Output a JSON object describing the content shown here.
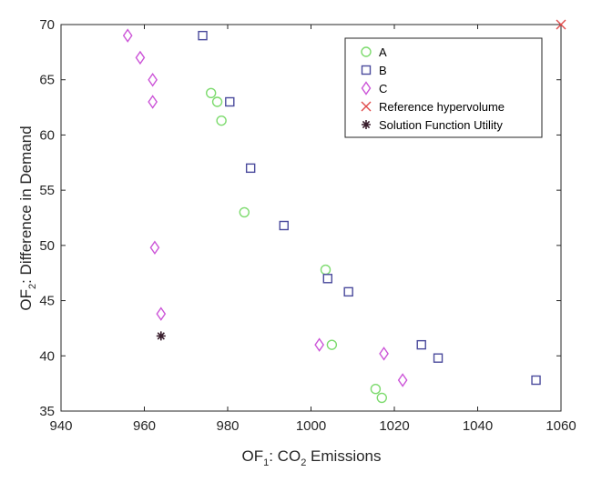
{
  "chart_data": {
    "type": "scatter",
    "title": "",
    "xlabel": {
      "prefix": "OF",
      "sub": "1",
      "mid": ": CO",
      "sub2": "2",
      "suffix": " Emissions"
    },
    "ylabel": {
      "prefix": "OF",
      "sub": "2",
      "suffix": ": Difference in Demand"
    },
    "xlim": [
      940,
      1060
    ],
    "ylim": [
      35,
      70
    ],
    "xticks": [
      940,
      960,
      980,
      1000,
      1020,
      1040,
      1060
    ],
    "yticks": [
      35,
      40,
      45,
      50,
      55,
      60,
      65,
      70
    ],
    "grid": false,
    "legend_position": "top-right",
    "series": [
      {
        "name": "A",
        "marker": "circle",
        "color": "#7ddb6e",
        "x": [
          976,
          977.5,
          978.5,
          984,
          1003.5,
          1005,
          1015.5,
          1017
        ],
        "y": [
          63.8,
          63,
          61.3,
          53,
          47.8,
          41,
          37,
          36.2
        ]
      },
      {
        "name": "B",
        "marker": "square",
        "color": "#4a4a9c",
        "x": [
          974,
          980.5,
          985.5,
          993.5,
          1004,
          1009,
          1026.5,
          1030.5,
          1054
        ],
        "y": [
          69,
          63,
          57,
          51.8,
          47,
          45.8,
          41,
          39.8,
          37.8
        ]
      },
      {
        "name": "C",
        "marker": "diamond",
        "color": "#cc55d8",
        "x": [
          956,
          959,
          962,
          962,
          962.5,
          964,
          1002,
          1017.5,
          1022
        ],
        "y": [
          69,
          67,
          65,
          63,
          49.8,
          43.8,
          41,
          40.2,
          37.8
        ]
      },
      {
        "name": "Reference hypervolume",
        "marker": "x",
        "color": "#e04a4a",
        "x": [
          1060
        ],
        "y": [
          70
        ]
      },
      {
        "name": "Solution Function Utility",
        "marker": "asterisk",
        "color": "#3a1f2e",
        "x": [
          964
        ],
        "y": [
          41.8
        ]
      }
    ]
  }
}
